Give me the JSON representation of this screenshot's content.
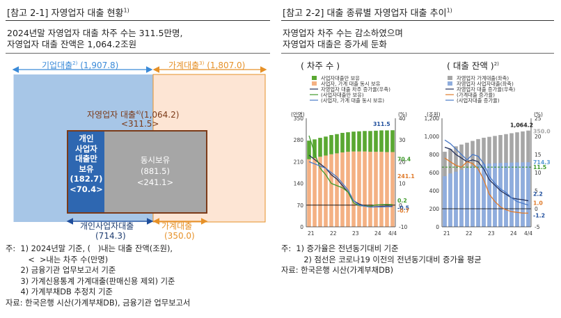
{
  "left": {
    "title": "[참고 2-1] 자영업자 대출 현황",
    "title_sup": "1)",
    "lead": "2024년말 자영업자 대출 차주 수는 311.5만명,\n자영업자 대출 잔액은 1,064.2조원",
    "business_loan_label": "기업대출",
    "business_loan_sup": "2)",
    "business_loan_value": "(1,907.8)",
    "household_loan_label": "가계대출",
    "household_loan_sup": "3)",
    "household_loan_value": "(1,807.0)",
    "self_emp_label": "자영업자 대출",
    "self_emp_sup": "4)",
    "self_emp_value": "(1,064.2)",
    "self_emp_borrowers": "<311.5>",
    "sole_box": [
      "개인",
      "사업자",
      "대출만",
      "보유",
      "(182.7)",
      "<70.4>"
    ],
    "both_box": [
      "동시보유",
      "(881.5)",
      "<241.1>"
    ],
    "bottom_left_label": "개인사업자대출",
    "bottom_left_value": "(714.3)",
    "bottom_right_label": "가계대출",
    "bottom_right_value": "(350.0)",
    "notes": [
      "주:  1) 2024년말 기준, (   )내는 대출 잔액(조원),",
      "         <  >내는 차주 수(만명)",
      "      2) 금융기관 업무보고서 기준",
      "      3) 가계신용통계 가계대출(판매신용 제외) 기준",
      "      4) 가계부채DB 추정치 기준",
      "자료: 한국은행 시산(가계부채DB), 금융기관 업무보고서"
    ]
  },
  "right": {
    "title": "[참고 2-2] 대출 종류별 자영업자 대출 추이",
    "title_sup": "1)",
    "lead": "자영업자 차주 수는 감소하였으며\n자영업자 대출은 증가세 둔화",
    "notes": [
      "주:  1) 증가율은 전년동기대비 기준",
      "         2) 점선은 코로나19 이전의 전년동기대비 증가율 평균",
      "자료: 한국은행 시산(가계부채DB)"
    ]
  },
  "chart_data": [
    {
      "type": "bar",
      "title": "( 차주 수 )",
      "x_tick_labels": [
        "21",
        "22",
        "23",
        "24",
        "4/4"
      ],
      "categories": [
        "21Q1",
        "21Q2",
        "21Q3",
        "21Q4",
        "22Q1",
        "22Q2",
        "22Q3",
        "22Q4",
        "23Q1",
        "23Q2",
        "23Q3",
        "23Q4",
        "24Q1",
        "24Q2",
        "24Q3",
        "24Q4"
      ],
      "ylabel_left": "(만명)",
      "ylabel_right": "(%)",
      "ylim_left": [
        0,
        350
      ],
      "yticks_left": [
        0,
        70,
        140,
        210,
        280,
        350
      ],
      "ylim_right": [
        -10,
        40
      ],
      "yticks_right": [
        -10,
        0,
        10,
        20,
        30,
        40
      ],
      "legend_position": "top",
      "series": [
        {
          "name": "사업자대출만 보유",
          "kind": "bar",
          "axis": "left",
          "color": "#5aa832",
          "values": [
            60,
            60,
            61,
            61,
            62,
            62,
            63,
            63,
            64,
            65,
            66,
            67,
            68,
            69,
            70,
            70.4
          ]
        },
        {
          "name": "사업자, 가계 대출 동시 보유",
          "kind": "bar",
          "axis": "left",
          "color": "#f4b183",
          "values": [
            218,
            222,
            226,
            230,
            234,
            237,
            240,
            242,
            243,
            243,
            243,
            242,
            242,
            242,
            241,
            241.1
          ]
        },
        {
          "name": "자영업자 대출 차주 증가율(우축)",
          "kind": "line",
          "axis": "right",
          "color": "#1f2d5a",
          "values": [
            23,
            21,
            19,
            17,
            14,
            12,
            9,
            6,
            2,
            0.5,
            -0.3,
            -0.8,
            -0.7,
            -0.6,
            -0.5,
            -0.5
          ]
        },
        {
          "name": "(사업자대출만 보유)",
          "kind": "line",
          "axis": "right",
          "color": "#3f9a2c",
          "values": [
            32,
            24,
            17,
            14,
            10,
            9,
            8,
            6,
            1,
            -0.2,
            -0.4,
            -0.5,
            0.1,
            0.2,
            0.3,
            0.2
          ]
        },
        {
          "name": "(사업자, 가계 대출 동시 보유)",
          "kind": "line",
          "axis": "right",
          "color": "#4a7ac8",
          "values": [
            20,
            19,
            18,
            17,
            15,
            13,
            10,
            7,
            2,
            0,
            -0.5,
            -0.9,
            -0.8,
            -0.8,
            -0.7,
            -0.7
          ]
        }
      ],
      "data_labels": [
        {
          "text": "311.5",
          "color": "#1f4e9c"
        },
        {
          "text": "70.4",
          "color": "#3f9a2c"
        },
        {
          "text": "241.1",
          "color": "#e07a2a"
        },
        {
          "text": "0.2",
          "color": "#3f9a2c"
        },
        {
          "text": "-0.5",
          "color": "#1f4e9c"
        },
        {
          "text": "-0.7",
          "color": "#e07a2a"
        }
      ]
    },
    {
      "type": "bar",
      "title": "( 대출 잔액 )",
      "title_sup": "2)",
      "x_tick_labels": [
        "21",
        "22",
        "23",
        "24",
        "4/4"
      ],
      "categories": [
        "21Q1",
        "21Q2",
        "21Q3",
        "21Q4",
        "22Q1",
        "22Q2",
        "22Q3",
        "22Q4",
        "23Q1",
        "23Q2",
        "23Q3",
        "23Q4",
        "24Q1",
        "24Q2",
        "24Q3",
        "24Q4"
      ],
      "ylabel_left": "(조원)",
      "ylabel_right": "(%)",
      "ylim_left": [
        0,
        1200
      ],
      "yticks_left": [
        0,
        200,
        400,
        600,
        800,
        1000,
        1200
      ],
      "ylim_right": [
        -5,
        25
      ],
      "yticks_right": [
        -5,
        0,
        5,
        10,
        15,
        20,
        25
      ],
      "legend_position": "top",
      "series": [
        {
          "name": "자영업자 가계대출(좌축)",
          "kind": "bar",
          "axis": "left",
          "color": "#a6a6a6",
          "values": [
            830,
            860,
            890,
            910,
            930,
            950,
            970,
            985,
            995,
            1005,
            1015,
            1025,
            1035,
            1045,
            1055,
            1064.2
          ]
        },
        {
          "name": "자영업자 사업자대출(좌축)",
          "kind": "bar",
          "axis": "left",
          "color": "#8fadde",
          "values": [
            560,
            590,
            610,
            630,
            650,
            670,
            685,
            695,
            700,
            703,
            706,
            708,
            710,
            712,
            713,
            714.3
          ]
        },
        {
          "name": "자영업자 대출 증가율(우축)",
          "kind": "line",
          "axis": "right",
          "color": "#1f2d5a",
          "values": [
            17,
            16.5,
            15,
            14,
            13,
            13.5,
            13,
            11,
            8,
            6.5,
            5,
            4,
            3,
            2.7,
            2.5,
            2.2
          ]
        },
        {
          "name": "(가계대출 증가율)",
          "kind": "line",
          "axis": "right",
          "color": "#e07a2a",
          "values": [
            14,
            13,
            12,
            11.5,
            13,
            12.5,
            11,
            8,
            4,
            2,
            0.5,
            -0.3,
            -0.8,
            -1.0,
            -1.2,
            -1.2
          ]
        },
        {
          "name": "(사업자대출 증가율)",
          "kind": "line",
          "axis": "right",
          "color": "#4a7ac8",
          "values": [
            19,
            18,
            16.5,
            15,
            13.5,
            15,
            14.5,
            12.5,
            9,
            7,
            5.5,
            4.5,
            3,
            2,
            1.5,
            1.0
          ]
        }
      ],
      "reference_lines": [
        {
          "label": "11.5",
          "value": 11.5,
          "axis": "right",
          "color": "#3f9a2c",
          "style": "dashed"
        }
      ],
      "data_labels": [
        {
          "text": "1,064.2",
          "color": "#222"
        },
        {
          "text": "350.0",
          "color": "#a6a6a6"
        },
        {
          "text": "714.3",
          "color": "#5b9bd5"
        },
        {
          "text": "11.5",
          "color": "#3f9a2c"
        },
        {
          "text": "2.2",
          "color": "#1f4e9c"
        },
        {
          "text": "1.0",
          "color": "#e07a2a"
        },
        {
          "text": "-1.2",
          "color": "#1f4e9c"
        }
      ]
    }
  ]
}
